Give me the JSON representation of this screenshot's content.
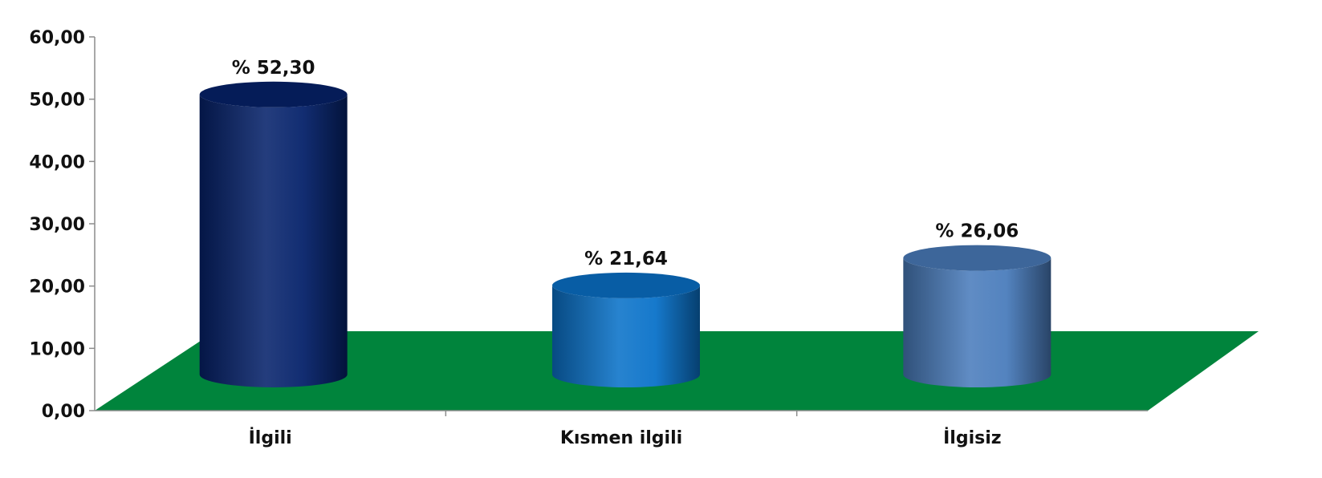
{
  "chart_data": {
    "type": "bar",
    "style": "3d-cylinder",
    "title": "",
    "xlabel": "",
    "ylabel": "",
    "categories": [
      "İlgili",
      "Kısmen ilgili",
      "İlgisiz"
    ],
    "values": [
      52.3,
      21.64,
      26.06
    ],
    "data_labels": [
      "% 52,30",
      "% 21,64",
      "% 26,06"
    ],
    "ylim": [
      0,
      60
    ],
    "yticks": [
      0,
      10,
      20,
      30,
      40,
      50,
      60
    ],
    "ytick_labels": [
      "0,00",
      "10,00",
      "20,00",
      "30,00",
      "40,00",
      "50,00",
      "60,00"
    ],
    "grid": false,
    "legend": "none",
    "floor_color": "#00843c",
    "bar_colors": [
      "#06226b",
      "#0a72c9",
      "#4a7cbc"
    ]
  }
}
